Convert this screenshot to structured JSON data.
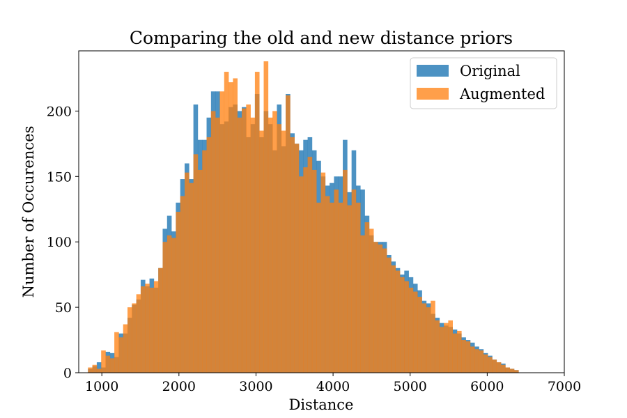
{
  "chart_data": {
    "type": "histogram",
    "title": "Comparing the old and new distance priors",
    "xlabel": "Distance",
    "ylabel": "Number of Occurences",
    "xlim": [
      700,
      7000
    ],
    "ylim": [
      0,
      246
    ],
    "xticks": [
      1000,
      2000,
      3000,
      4000,
      5000,
      6000,
      7000
    ],
    "yticks": [
      0,
      50,
      100,
      150,
      200
    ],
    "legend_position": "top-right",
    "bin_start": 820,
    "bin_width": 57,
    "series": [
      {
        "name": "Original",
        "color": "#1f77b4",
        "opacity": 0.8,
        "values": [
          3,
          5,
          8,
          4,
          16,
          15,
          12,
          30,
          30,
          42,
          52,
          56,
          71,
          66,
          72,
          65,
          80,
          110,
          120,
          108,
          130,
          148,
          160,
          148,
          205,
          178,
          178,
          195,
          215,
          215,
          190,
          192,
          203,
          205,
          200,
          203,
          180,
          190,
          213,
          180,
          200,
          190,
          170,
          205,
          173,
          213,
          183,
          175,
          170,
          178,
          180,
          170,
          162,
          150,
          143,
          145,
          150,
          150,
          178,
          138,
          170,
          143,
          140,
          120,
          105,
          100,
          100,
          100,
          90,
          85,
          80,
          75,
          78,
          73,
          68,
          63,
          55,
          53,
          45,
          42,
          38,
          36,
          35,
          33,
          30,
          27,
          25,
          23,
          20,
          18,
          15,
          13,
          10,
          8,
          7,
          4,
          3,
          2
        ]
      },
      {
        "name": "Augmented",
        "color": "#ff7f0e",
        "opacity": 0.75,
        "values": [
          4,
          6,
          3,
          17,
          13,
          11,
          31,
          27,
          37,
          50,
          53,
          60,
          66,
          68,
          65,
          70,
          80,
          100,
          105,
          103,
          123,
          135,
          153,
          145,
          167,
          155,
          170,
          180,
          200,
          195,
          215,
          230,
          222,
          225,
          195,
          202,
          205,
          195,
          230,
          185,
          238,
          195,
          200,
          190,
          185,
          212,
          180,
          175,
          150,
          157,
          165,
          155,
          130,
          153,
          135,
          130,
          140,
          130,
          155,
          128,
          140,
          130,
          105,
          115,
          110,
          100,
          98,
          95,
          88,
          82,
          78,
          73,
          70,
          65,
          62,
          58,
          53,
          50,
          55,
          40,
          35,
          38,
          40,
          30,
          32,
          25,
          24,
          20,
          18,
          17,
          14,
          12,
          10,
          8,
          6,
          4,
          3,
          2
        ]
      }
    ]
  }
}
